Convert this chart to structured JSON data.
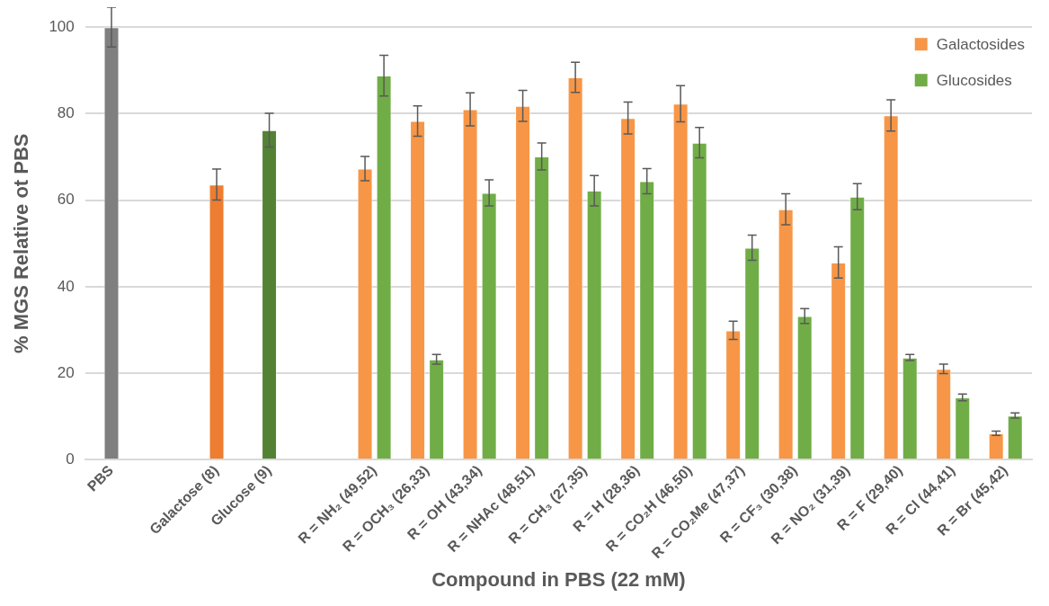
{
  "chart_data": {
    "type": "bar",
    "xlabel": "Compound in PBS (22 mM)",
    "ylabel": "% MGS Relative ot PBS",
    "categories": [
      "PBS",
      null,
      "Galactose (8)",
      "Glucose (9)",
      null,
      "R = NH₂ (49,52)",
      "R = OCH₃ (26,33)",
      "R = OH (43,34)",
      "R = NHAc (48,51)",
      "R = CH₃ (27,35)",
      "R = H (28,36)",
      "R = CO₂H (46,50)",
      "R = CO₂Me (47,37)",
      "R = CF₃ (30,38)",
      "R = NO₂ (31,39)",
      "R = F (29,40)",
      "R = Cl (44,41)",
      "R = Br (45,42)"
    ],
    "series": [
      {
        "colors": [
          "#7f7f7f",
          null,
          "#ed7d31",
          "#548235",
          null,
          null,
          null,
          null,
          null,
          null,
          null,
          null,
          null,
          null,
          null,
          null,
          null,
          null
        ],
        "values": [
          100,
          null,
          63.6,
          76.2,
          null,
          null,
          null,
          null,
          null,
          null,
          null,
          null,
          null,
          null,
          null,
          null,
          null,
          null
        ],
        "errors": [
          4.6,
          null,
          3.6,
          3.9,
          null,
          null,
          null,
          null,
          null,
          null,
          null,
          null,
          null,
          null,
          null,
          null,
          null,
          null
        ]
      },
      {
        "name": "Galactosides",
        "color": "#f79646",
        "values": [
          null,
          null,
          null,
          null,
          null,
          67.3,
          78.3,
          81.0,
          81.8,
          88.4,
          79.0,
          82.3,
          29.9,
          57.9,
          45.6,
          79.6,
          21.0,
          6.1
        ],
        "errors": [
          null,
          null,
          null,
          null,
          null,
          2.8,
          3.5,
          3.8,
          3.6,
          3.5,
          3.7,
          4.2,
          2.1,
          3.6,
          3.6,
          3.6,
          1.1,
          0.5
        ]
      },
      {
        "name": "Glucosides",
        "color": "#70ad47",
        "values": [
          null,
          null,
          null,
          null,
          null,
          88.8,
          23.2,
          61.7,
          70.1,
          62.2,
          64.4,
          73.3,
          49.0,
          33.2,
          60.8,
          23.6,
          14.4,
          10.2
        ],
        "errors": [
          null,
          null,
          null,
          null,
          null,
          4.7,
          1.1,
          3.0,
          3.1,
          3.5,
          2.9,
          3.5,
          2.9,
          1.7,
          3.0,
          0.7,
          0.8,
          0.6
        ]
      }
    ],
    "ylim": [
      0,
      100
    ],
    "yticks": [
      0,
      20,
      40,
      60,
      80,
      100
    ],
    "grid": "y",
    "legend": "top right"
  }
}
